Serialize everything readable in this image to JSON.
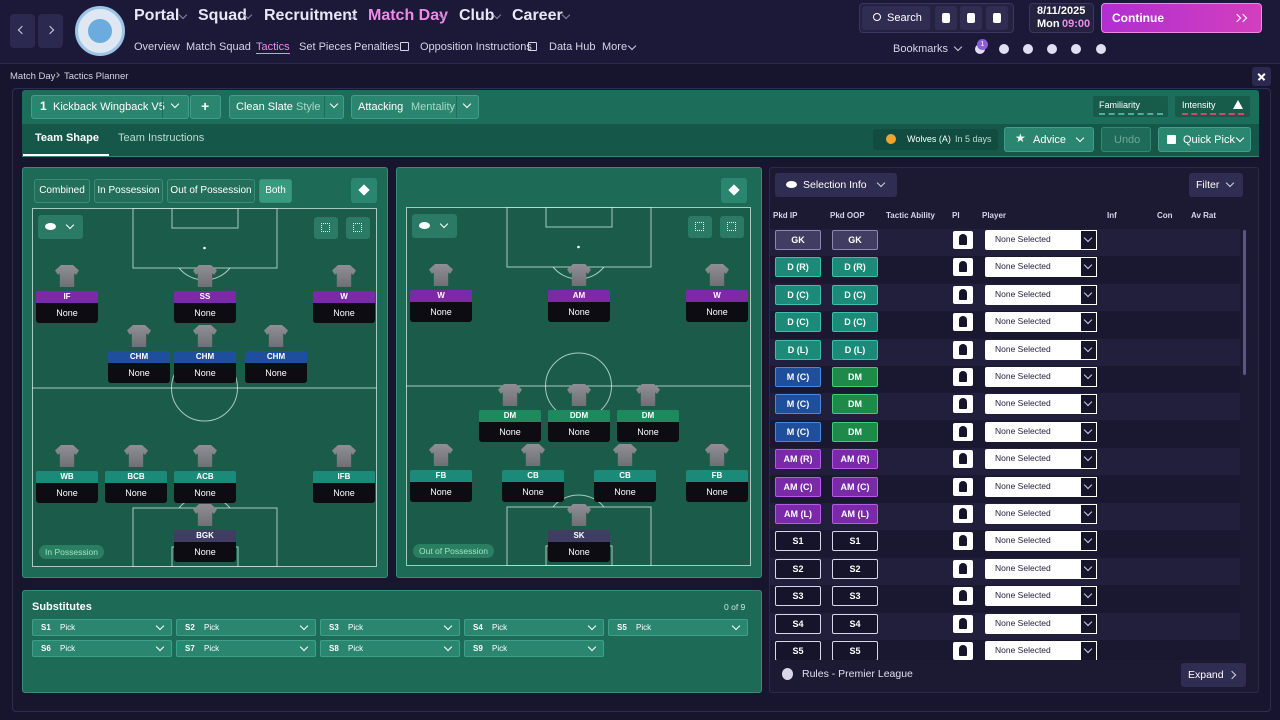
{
  "topbar": {
    "menu": [
      "Portal",
      "Squad",
      "Recruitment",
      "Match Day",
      "Club",
      "Career"
    ],
    "submenu": [
      "Overview",
      "Match Squad",
      "Tactics",
      "Set Pieces",
      "Penalties",
      "Opposition Instructions",
      "Data Hub",
      "More"
    ],
    "search": "Search",
    "date": "8/11/2025",
    "day": "Mon",
    "time": "09:00",
    "continue": "Continue",
    "bookmarks": "Bookmarks",
    "badge": "1"
  },
  "breadcrumb": [
    "Match Day",
    "Tactics Planner"
  ],
  "toolbar": {
    "tactic_number": "1",
    "tactic_name": "Kickback Wingback V5",
    "add": "+",
    "style": "Clean Slate",
    "style_label": "Style",
    "mentality": "Attacking",
    "mentality_label": "Mentality",
    "familiarity": "Familiarity",
    "intensity": "Intensity"
  },
  "tabs": [
    "Team Shape",
    "Team Instructions"
  ],
  "fixture": {
    "opponent": "Wolves (A)",
    "when": "In 5 days"
  },
  "actions": {
    "advice": "Advice",
    "undo": "Undo",
    "quick_pick": "Quick Pick"
  },
  "shape_filters": [
    "Combined",
    "In Possession",
    "Out of Possession",
    "Both"
  ],
  "pitches": [
    {
      "tag": "In Possession",
      "players": [
        {
          "position": "IF",
          "player": "None"
        },
        {
          "position": "SS",
          "player": "None"
        },
        {
          "position": "W",
          "player": "None"
        },
        {
          "position": "CHM",
          "player": "None"
        },
        {
          "position": "CHM",
          "player": "None"
        },
        {
          "position": "CHM",
          "player": "None"
        },
        {
          "position": "WB",
          "player": "None"
        },
        {
          "position": "BCB",
          "player": "None"
        },
        {
          "position": "ACB",
          "player": "None"
        },
        {
          "position": "IFB",
          "player": "None"
        },
        {
          "position": "BGK",
          "player": "None"
        }
      ]
    },
    {
      "tag": "Out of Possession",
      "players": [
        {
          "position": "W",
          "player": "None"
        },
        {
          "position": "AM",
          "player": "None"
        },
        {
          "position": "W",
          "player": "None"
        },
        {
          "position": "DM",
          "player": "None"
        },
        {
          "position": "DDM",
          "player": "None"
        },
        {
          "position": "DM",
          "player": "None"
        },
        {
          "position": "FB",
          "player": "None"
        },
        {
          "position": "CB",
          "player": "None"
        },
        {
          "position": "CB",
          "player": "None"
        },
        {
          "position": "FB",
          "player": "None"
        },
        {
          "position": "SK",
          "player": "None"
        }
      ]
    }
  ],
  "substitutes": {
    "title": "Substitutes",
    "count": "0 of 9",
    "slots": [
      {
        "slot": "S1",
        "player": "Pick"
      },
      {
        "slot": "S2",
        "player": "Pick"
      },
      {
        "slot": "S3",
        "player": "Pick"
      },
      {
        "slot": "S4",
        "player": "Pick"
      },
      {
        "slot": "S5",
        "player": "Pick"
      },
      {
        "slot": "S6",
        "player": "Pick"
      },
      {
        "slot": "S7",
        "player": "Pick"
      },
      {
        "slot": "S8",
        "player": "Pick"
      },
      {
        "slot": "S9",
        "player": "Pick"
      }
    ]
  },
  "selection": {
    "view": "Selection Info",
    "filter": "Filter",
    "columns": [
      "Pkd IP",
      "Pkd OOP",
      "Tactic Ability",
      "PI",
      "Player",
      "Inf",
      "Con",
      "Av Rat"
    ],
    "rows": [
      {
        "ip": "GK",
        "oop": "GK",
        "player": "None Selected"
      },
      {
        "ip": "D (R)",
        "oop": "D (R)",
        "player": "None Selected"
      },
      {
        "ip": "D (C)",
        "oop": "D (C)",
        "player": "None Selected"
      },
      {
        "ip": "D (C)",
        "oop": "D (C)",
        "player": "None Selected"
      },
      {
        "ip": "D (L)",
        "oop": "D (L)",
        "player": "None Selected"
      },
      {
        "ip": "M (C)",
        "oop": "DM",
        "player": "None Selected"
      },
      {
        "ip": "M (C)",
        "oop": "DM",
        "player": "None Selected"
      },
      {
        "ip": "M (C)",
        "oop": "DM",
        "player": "None Selected"
      },
      {
        "ip": "AM (R)",
        "oop": "AM (R)",
        "player": "None Selected"
      },
      {
        "ip": "AM (C)",
        "oop": "AM (C)",
        "player": "None Selected"
      },
      {
        "ip": "AM (L)",
        "oop": "AM (L)",
        "player": "None Selected"
      },
      {
        "ip": "S1",
        "oop": "S1",
        "player": "None Selected"
      },
      {
        "ip": "S2",
        "oop": "S2",
        "player": "None Selected"
      },
      {
        "ip": "S3",
        "oop": "S3",
        "player": "None Selected"
      },
      {
        "ip": "S4",
        "oop": "S4",
        "player": "None Selected"
      },
      {
        "ip": "S5",
        "oop": "S5",
        "player": "None Selected"
      }
    ]
  },
  "footer": {
    "rules": "Rules - Premier League",
    "expand": "Expand"
  }
}
